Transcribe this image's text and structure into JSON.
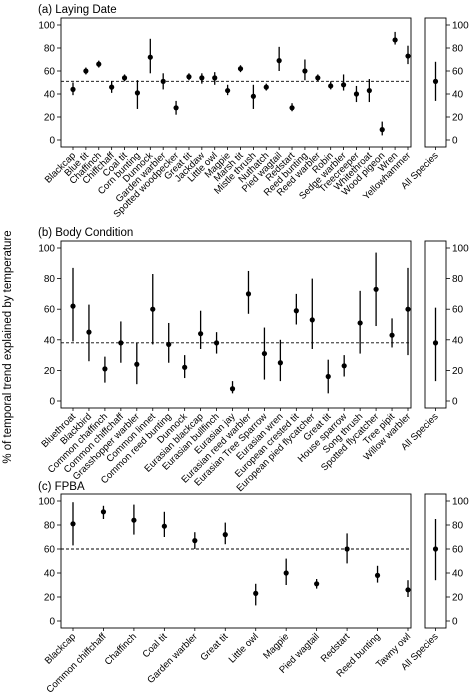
{
  "y_axis_label": "% of temporal trend explained by temperature",
  "chart_data": [
    {
      "type": "scatter",
      "title": "(a) Laying Date",
      "ylim": [
        0,
        100
      ],
      "yticks": [
        0,
        20,
        40,
        60,
        80,
        100
      ],
      "reference_line": 51,
      "categories": [
        "Blackcap",
        "Blue tit",
        "Chaffinch",
        "Chiffchaff",
        "Coal tit",
        "Corn bunting",
        "Dunnock",
        "Garden warbler",
        "Spotted woodpecker",
        "Great tit",
        "Jackdaw",
        "Little owl",
        "Magpie",
        "Marsh tit",
        "Mistle thrush",
        "Nuthatch",
        "Pied wagtail",
        "Redstart",
        "Reed bunting",
        "Reed warbler",
        "Robin",
        "Sedge warbler",
        "Treecreeper",
        "Whitethroat",
        "Wood pigeon",
        "Wren",
        "Yellowhammer"
      ],
      "values": [
        44,
        60,
        66,
        46,
        54,
        41,
        72,
        51,
        28,
        55,
        54,
        54,
        43,
        62,
        38,
        46,
        69,
        28,
        60,
        54,
        47,
        48,
        40,
        43,
        9,
        87,
        73
      ],
      "lower": [
        39,
        57,
        63,
        41,
        51,
        27,
        58,
        44,
        22,
        52,
        49,
        48,
        39,
        59,
        27,
        43,
        60,
        25,
        52,
        51,
        44,
        43,
        33,
        33,
        4,
        83,
        66
      ],
      "upper": [
        50,
        63,
        69,
        51,
        57,
        52,
        88,
        58,
        34,
        58,
        58,
        59,
        48,
        65,
        48,
        49,
        81,
        32,
        70,
        57,
        51,
        57,
        47,
        53,
        16,
        94,
        82
      ],
      "summary": {
        "label": "All Species",
        "value": 51,
        "lower": 34,
        "upper": 68
      }
    },
    {
      "type": "scatter",
      "title": "(b) Body Condition",
      "ylim": [
        0,
        100
      ],
      "yticks": [
        0,
        20,
        40,
        60,
        80,
        100
      ],
      "reference_line": 38,
      "categories": [
        "Bluethroat",
        "Blackbird",
        "Common chaffinch",
        "Common chiffchaff",
        "Grasshopper warbler",
        "Common linnet",
        "Common reed bunting",
        "Dunnock",
        "Eurasian blackcap",
        "Eurasian bullfinch",
        "Eurasian jay",
        "Eurasian reed warbler",
        "Eurasian Tree Sparrow",
        "Eurasian wren",
        "European crested tit",
        "European pied flycatcher",
        "Great tit",
        "House sparrow",
        "Song thrush",
        "Spotted flycatcher",
        "Tree pipit",
        "Willow warbler"
      ],
      "values": [
        62,
        45,
        21,
        38,
        24,
        60,
        37,
        22,
        44,
        38,
        8,
        70,
        31,
        25,
        59,
        53,
        16,
        23,
        51,
        73,
        43,
        60
      ],
      "lower": [
        39,
        26,
        12,
        25,
        11,
        37,
        25,
        15,
        34,
        31,
        5,
        57,
        14,
        13,
        50,
        34,
        5,
        16,
        31,
        49,
        35,
        30
      ],
      "upper": [
        87,
        63,
        29,
        52,
        38,
        83,
        51,
        30,
        59,
        45,
        13,
        85,
        48,
        40,
        70,
        80,
        27,
        30,
        72,
        97,
        54,
        87
      ],
      "summary": {
        "label": "All Species",
        "value": 38,
        "lower": 13,
        "upper": 61
      }
    },
    {
      "type": "scatter",
      "title": "(c) FPBA",
      "ylim": [
        0,
        100
      ],
      "yticks": [
        0,
        20,
        40,
        60,
        80,
        100
      ],
      "reference_line": 60,
      "categories": [
        "Blackcap",
        "Common chiffchaff",
        "Chaffinch",
        "Coal tit",
        "Garden warbler",
        "Great tit",
        "Little owl",
        "Magpie",
        "Pied wagtail",
        "Redstart",
        "Reed bunting",
        "Tawny owl"
      ],
      "values": [
        81,
        91,
        84,
        79,
        67,
        72,
        23,
        40,
        31,
        60,
        38,
        26
      ],
      "lower": [
        63,
        85,
        72,
        70,
        60,
        64,
        13,
        30,
        27,
        48,
        32,
        20
      ],
      "upper": [
        99,
        96,
        97,
        91,
        74,
        82,
        31,
        52,
        35,
        73,
        46,
        34
      ],
      "summary": {
        "label": "All Species",
        "value": 60,
        "lower": 34,
        "upper": 85
      }
    }
  ]
}
